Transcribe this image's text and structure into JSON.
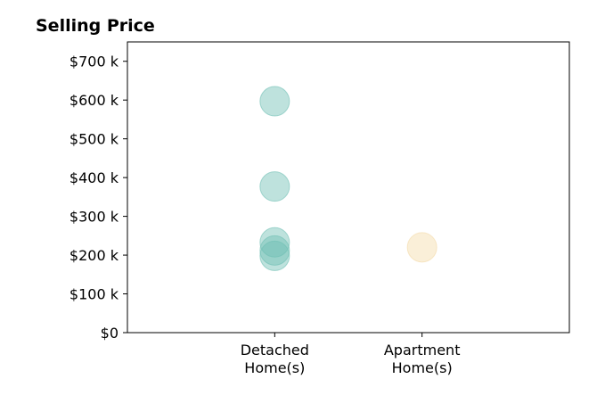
{
  "chart_data": {
    "type": "scatter",
    "title": "Selling Price",
    "xlabel": "",
    "ylabel": "",
    "categories": [
      {
        "lines": [
          "Detached",
          "Home(s)"
        ]
      },
      {
        "lines": [
          "Apartment",
          "Home(s)"
        ]
      }
    ],
    "xlim": [
      0,
      3
    ],
    "ylim": [
      0,
      750000
    ],
    "yticks": [
      {
        "value": 0,
        "label": "$0"
      },
      {
        "value": 100000,
        "label": "$100 k"
      },
      {
        "value": 200000,
        "label": "$200 k"
      },
      {
        "value": 300000,
        "label": "$300 k"
      },
      {
        "value": 400000,
        "label": "$400 k"
      },
      {
        "value": 500000,
        "label": "$500 k"
      },
      {
        "value": 600000,
        "label": "$600 k"
      },
      {
        "value": 700000,
        "label": "$700 k"
      }
    ],
    "grid": false,
    "legend": "none",
    "series": [
      {
        "category": 1,
        "color": "#6fbfb4",
        "values": [
          597000,
          377000,
          233000,
          212000,
          198000
        ]
      },
      {
        "category": 2,
        "color": "#f3dba9",
        "values": [
          220000
        ]
      }
    ]
  }
}
